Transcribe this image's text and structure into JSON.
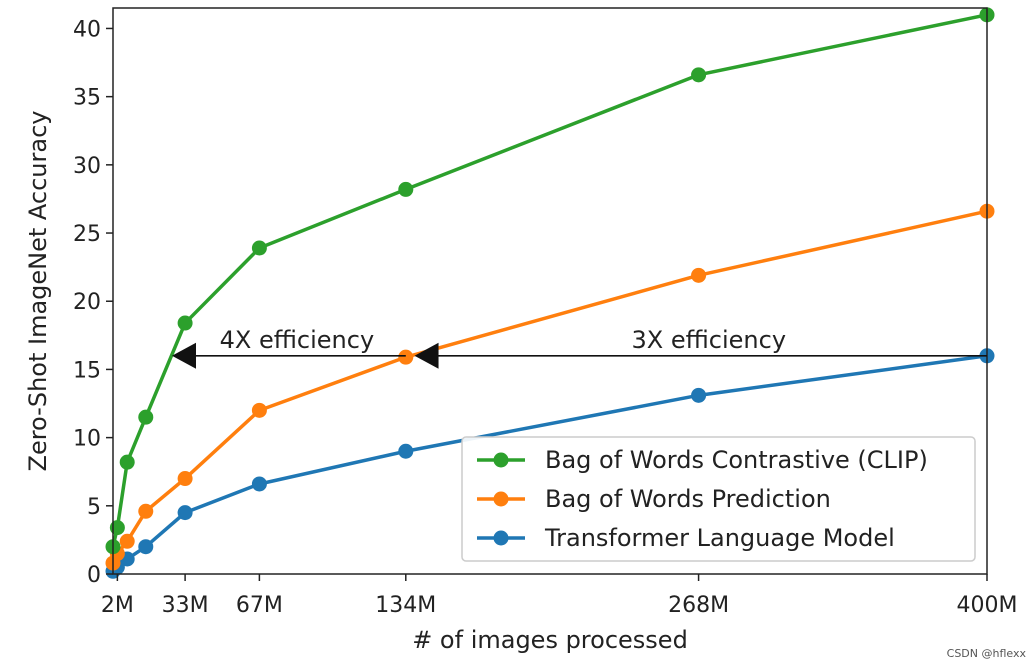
{
  "chart_data": {
    "type": "line",
    "xlabel": "# of images processed",
    "ylabel": "Zero-Shot ImageNet Accuracy",
    "xlim": [
      0,
      400
    ],
    "ylim": [
      0,
      41.5
    ],
    "x_ticks": [
      {
        "value": 2,
        "label": "2M"
      },
      {
        "value": 33,
        "label": "33M"
      },
      {
        "value": 67,
        "label": "67M"
      },
      {
        "value": 134,
        "label": "134M"
      },
      {
        "value": 268,
        "label": "268M"
      },
      {
        "value": 400,
        "label": "400M"
      }
    ],
    "y_ticks": [
      0,
      5,
      10,
      15,
      20,
      25,
      30,
      35,
      40
    ],
    "grid": false,
    "legend_position": "lower-right",
    "series": [
      {
        "name": "Bag of Words Contrastive (CLIP)",
        "color": "#2ca02c",
        "points": [
          [
            0,
            2.0
          ],
          [
            2,
            3.4
          ],
          [
            6.5,
            8.2
          ],
          [
            15,
            11.5
          ],
          [
            33,
            18.4
          ],
          [
            67,
            23.9
          ],
          [
            134,
            28.2
          ],
          [
            268,
            36.6
          ],
          [
            400,
            41.0
          ]
        ]
      },
      {
        "name": "Bag of Words Prediction",
        "color": "#ff7f0e",
        "points": [
          [
            0,
            0.8
          ],
          [
            2,
            1.5
          ],
          [
            6.5,
            2.4
          ],
          [
            15,
            4.6
          ],
          [
            33,
            7.0
          ],
          [
            67,
            12.0
          ],
          [
            134,
            15.9
          ],
          [
            268,
            21.9
          ],
          [
            400,
            26.6
          ]
        ]
      },
      {
        "name": "Transformer Language Model",
        "color": "#1f77b4",
        "points": [
          [
            0,
            0.2
          ],
          [
            2,
            0.5
          ],
          [
            6.5,
            1.1
          ],
          [
            15,
            2.0
          ],
          [
            33,
            4.5
          ],
          [
            67,
            6.6
          ],
          [
            134,
            9.0
          ],
          [
            268,
            13.1
          ],
          [
            400,
            16.0
          ]
        ]
      }
    ],
    "annotations": [
      {
        "text": "4X efficiency",
        "from_x": 134,
        "to_x": 27,
        "y": 16.0
      },
      {
        "text": "3X efficiency",
        "from_x": 400,
        "to_x": 138,
        "y": 16.0
      }
    ]
  },
  "watermark": "CSDN @hflexx"
}
